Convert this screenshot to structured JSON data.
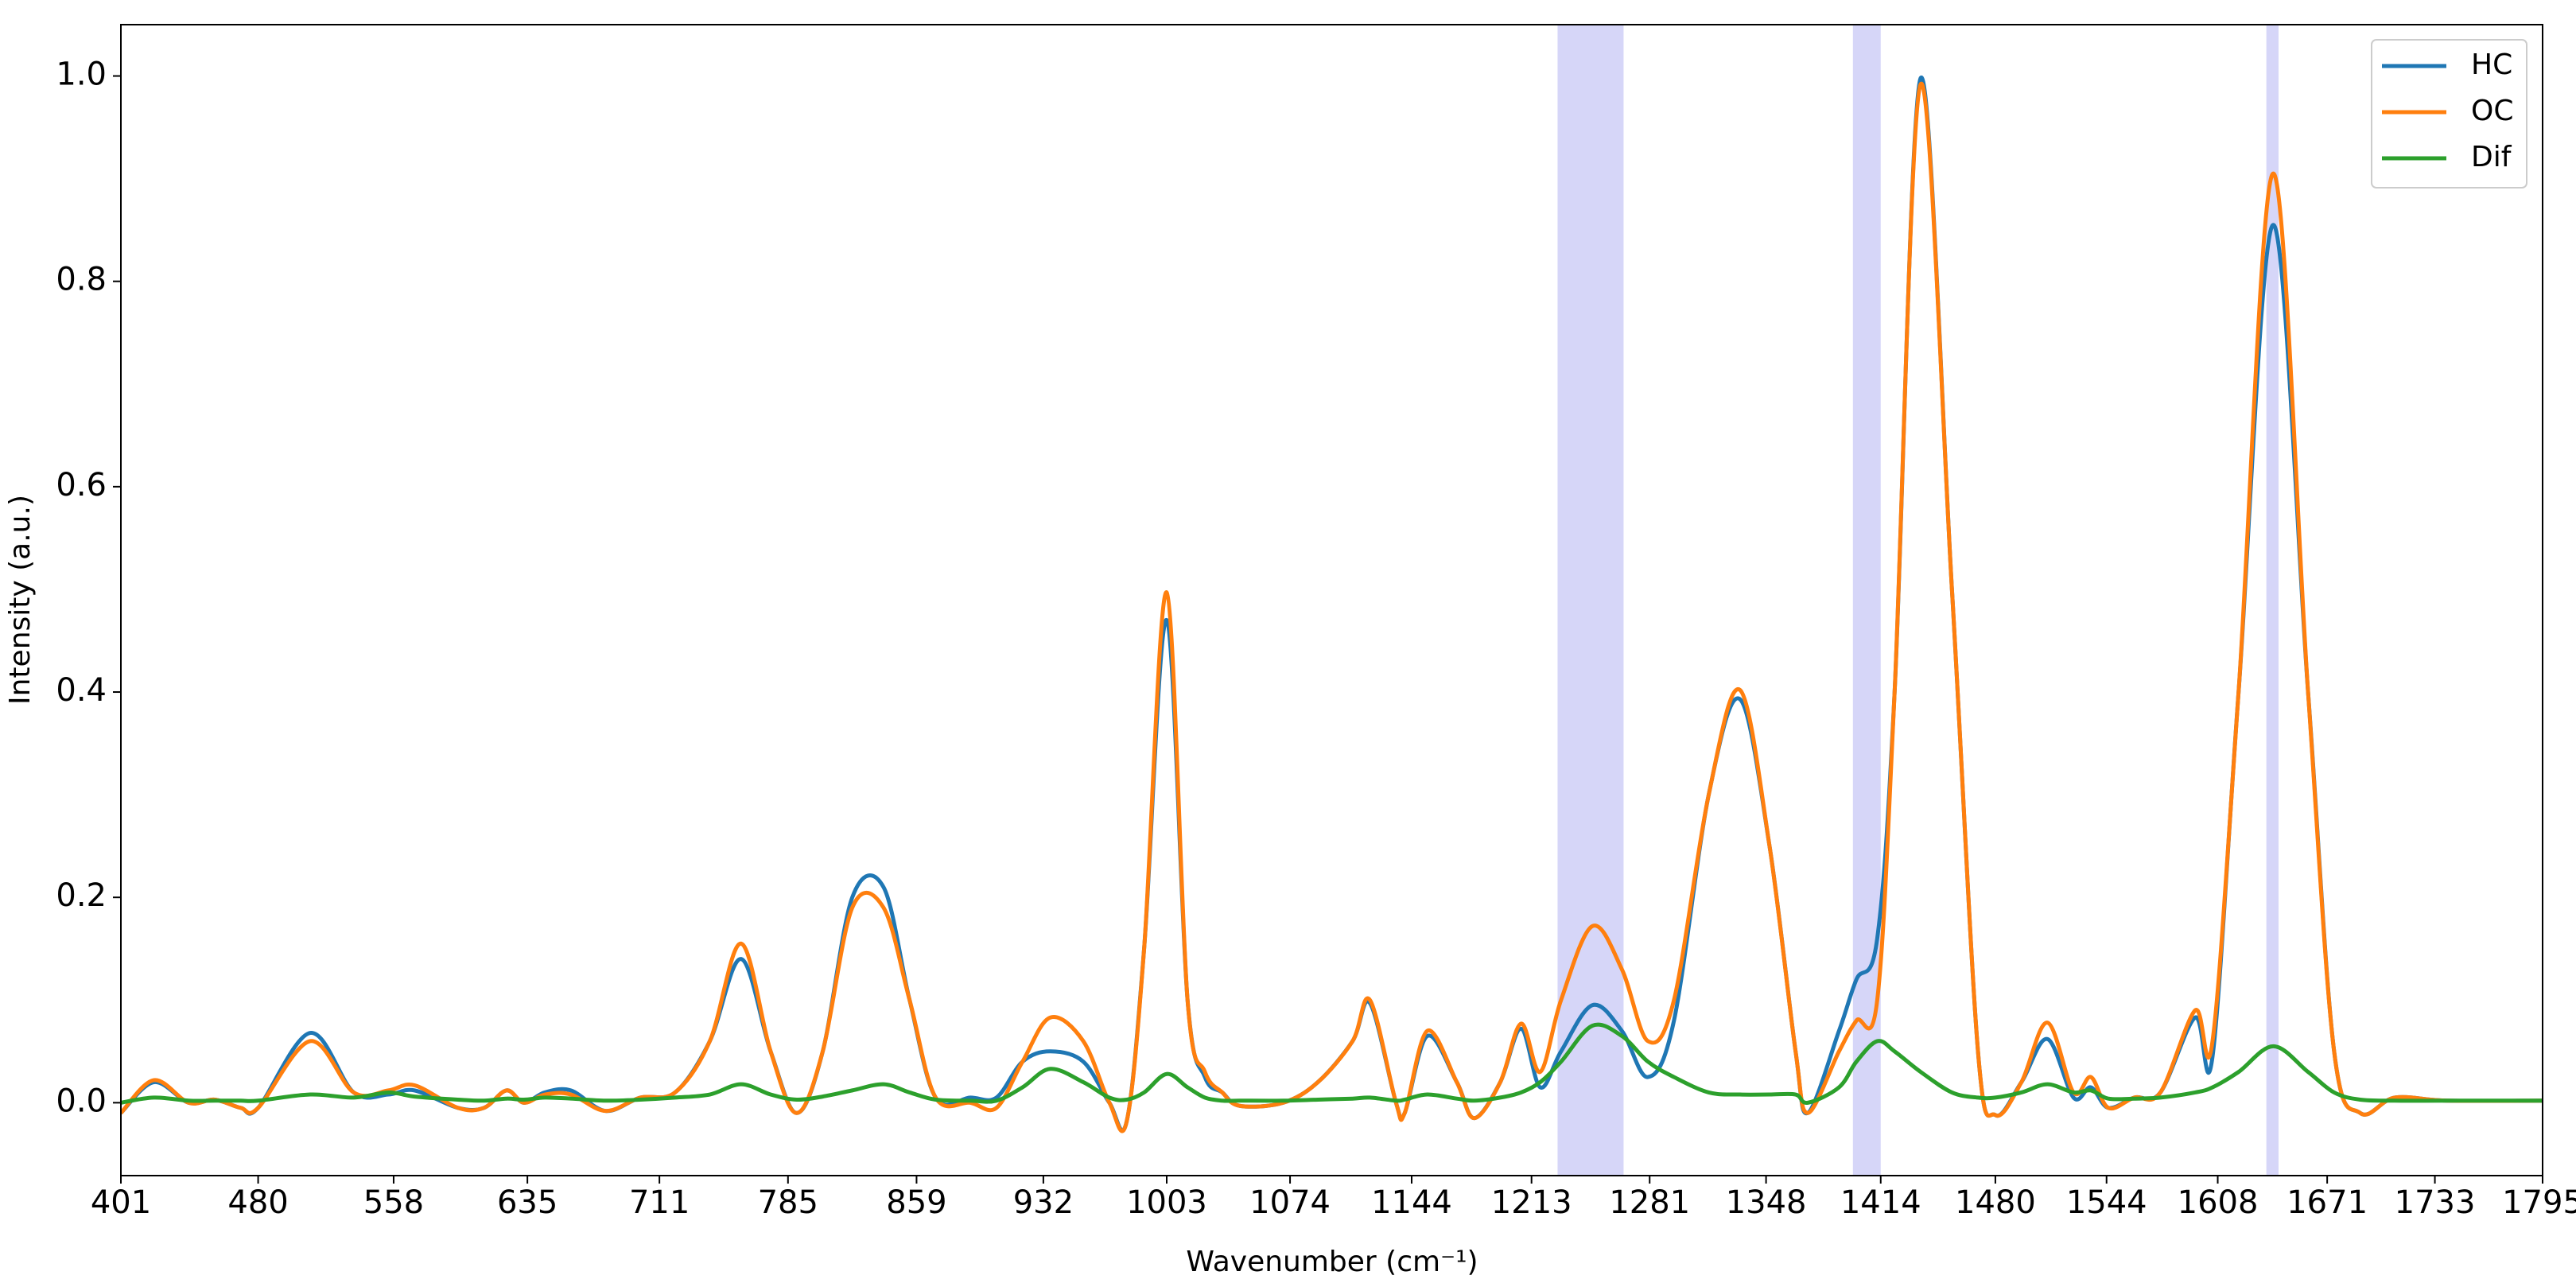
{
  "chart_data": {
    "type": "line",
    "x_label": "Wavenumber (cm⁻¹)",
    "y_label": "Intensity (a.u.)",
    "x": [
      401,
      420,
      440,
      455,
      470,
      480,
      510,
      535,
      555,
      570,
      595,
      610,
      623,
      633,
      645,
      660,
      680,
      700,
      720,
      740,
      758,
      775,
      790,
      805,
      822,
      840,
      855,
      870,
      890,
      905,
      920,
      936,
      955,
      970,
      980,
      990,
      1003,
      1015,
      1025,
      1035,
      1045,
      1070,
      1090,
      1110,
      1120,
      1135,
      1140,
      1153,
      1170,
      1180,
      1195,
      1207,
      1218,
      1230,
      1248,
      1265,
      1280,
      1295,
      1315,
      1333,
      1350,
      1365,
      1372,
      1390,
      1400,
      1412,
      1422,
      1437,
      1455,
      1470,
      1480,
      1495,
      1510,
      1525,
      1535,
      1545,
      1560,
      1575,
      1595,
      1605,
      1620,
      1640,
      1660,
      1675,
      1690,
      1710,
      1740,
      1795
    ],
    "series": [
      {
        "name": "HC",
        "color": "#1f77b4",
        "values": [
          -0.01,
          0.02,
          0.0,
          0.003,
          -0.005,
          -0.005,
          0.068,
          0.01,
          0.008,
          0.012,
          -0.005,
          -0.005,
          0.012,
          0.0,
          0.01,
          0.012,
          -0.008,
          0.005,
          0.01,
          0.06,
          0.14,
          0.05,
          -0.01,
          0.05,
          0.2,
          0.21,
          0.1,
          0.005,
          0.005,
          0.005,
          0.04,
          0.05,
          0.04,
          0.0,
          -0.018,
          0.15,
          0.47,
          0.1,
          0.025,
          0.01,
          -0.003,
          0.0,
          0.02,
          0.06,
          0.097,
          0.0,
          -0.01,
          0.065,
          0.02,
          -0.015,
          0.02,
          0.072,
          0.015,
          0.05,
          0.095,
          0.07,
          0.025,
          0.08,
          0.3,
          0.393,
          0.25,
          0.05,
          -0.01,
          0.07,
          0.12,
          0.16,
          0.4,
          0.998,
          0.5,
          0.05,
          -0.012,
          0.02,
          0.062,
          0.005,
          0.015,
          -0.005,
          0.005,
          0.01,
          0.083,
          0.045,
          0.4,
          0.855,
          0.4,
          0.05,
          -0.01,
          0.005,
          0.002,
          0.002
        ]
      },
      {
        "name": "OC",
        "color": "#ff7f0e",
        "values": [
          -0.01,
          0.022,
          0.0,
          0.003,
          -0.005,
          -0.005,
          0.06,
          0.01,
          0.012,
          0.017,
          -0.005,
          -0.005,
          0.012,
          0.0,
          0.008,
          0.008,
          -0.008,
          0.005,
          0.01,
          0.06,
          0.155,
          0.05,
          -0.01,
          0.05,
          0.19,
          0.19,
          0.1,
          0.005,
          0.0,
          -0.005,
          0.04,
          0.083,
          0.06,
          0.0,
          -0.018,
          0.15,
          0.497,
          0.1,
          0.03,
          0.01,
          -0.003,
          0.0,
          0.02,
          0.06,
          0.1,
          0.0,
          -0.01,
          0.07,
          0.02,
          -0.015,
          0.02,
          0.077,
          0.03,
          0.1,
          0.172,
          0.13,
          0.06,
          0.1,
          0.3,
          0.402,
          0.25,
          0.05,
          -0.01,
          0.05,
          0.08,
          0.1,
          0.4,
          0.992,
          0.5,
          0.05,
          -0.012,
          0.02,
          0.078,
          0.01,
          0.025,
          -0.005,
          0.005,
          0.01,
          0.09,
          0.06,
          0.4,
          0.905,
          0.4,
          0.05,
          -0.01,
          0.005,
          0.002,
          0.002
        ]
      },
      {
        "name": "Dif",
        "color": "#2ca02c",
        "values": [
          0.0,
          0.005,
          0.002,
          0.002,
          0.002,
          0.002,
          0.008,
          0.005,
          0.01,
          0.006,
          0.003,
          0.002,
          0.004,
          0.003,
          0.005,
          0.004,
          0.002,
          0.003,
          0.005,
          0.008,
          0.018,
          0.008,
          0.003,
          0.006,
          0.012,
          0.018,
          0.01,
          0.003,
          0.002,
          0.002,
          0.015,
          0.033,
          0.02,
          0.005,
          0.003,
          0.01,
          0.028,
          0.015,
          0.005,
          0.002,
          0.002,
          0.002,
          0.003,
          0.004,
          0.005,
          0.002,
          0.003,
          0.008,
          0.004,
          0.002,
          0.005,
          0.01,
          0.02,
          0.04,
          0.075,
          0.065,
          0.04,
          0.025,
          0.01,
          0.008,
          0.008,
          0.008,
          0.0,
          0.015,
          0.04,
          0.06,
          0.05,
          0.03,
          0.01,
          0.005,
          0.005,
          0.01,
          0.018,
          0.01,
          0.012,
          0.004,
          0.004,
          0.005,
          0.01,
          0.015,
          0.03,
          0.055,
          0.03,
          0.01,
          0.003,
          0.002,
          0.002,
          0.002
        ]
      }
    ],
    "shaded_regions": [
      [
        1228,
        1266
      ],
      [
        1398,
        1414
      ],
      [
        1636,
        1643
      ]
    ],
    "shaded_color": "#c8c8f5",
    "xlim": [
      401,
      1795
    ],
    "xticks": [
      401,
      480,
      558,
      635,
      711,
      785,
      859,
      932,
      1003,
      1074,
      1144,
      1213,
      1281,
      1348,
      1414,
      1480,
      1544,
      1608,
      1671,
      1733,
      1795
    ],
    "ylim": [
      -0.071,
      1.05
    ],
    "yticks": [
      {
        "value": 0,
        "label": "0.0"
      },
      0.2,
      0.4,
      0.6,
      0.8,
      {
        "value": 1,
        "label": "1.0"
      }
    ],
    "legend": "upper right",
    "grid": false
  }
}
